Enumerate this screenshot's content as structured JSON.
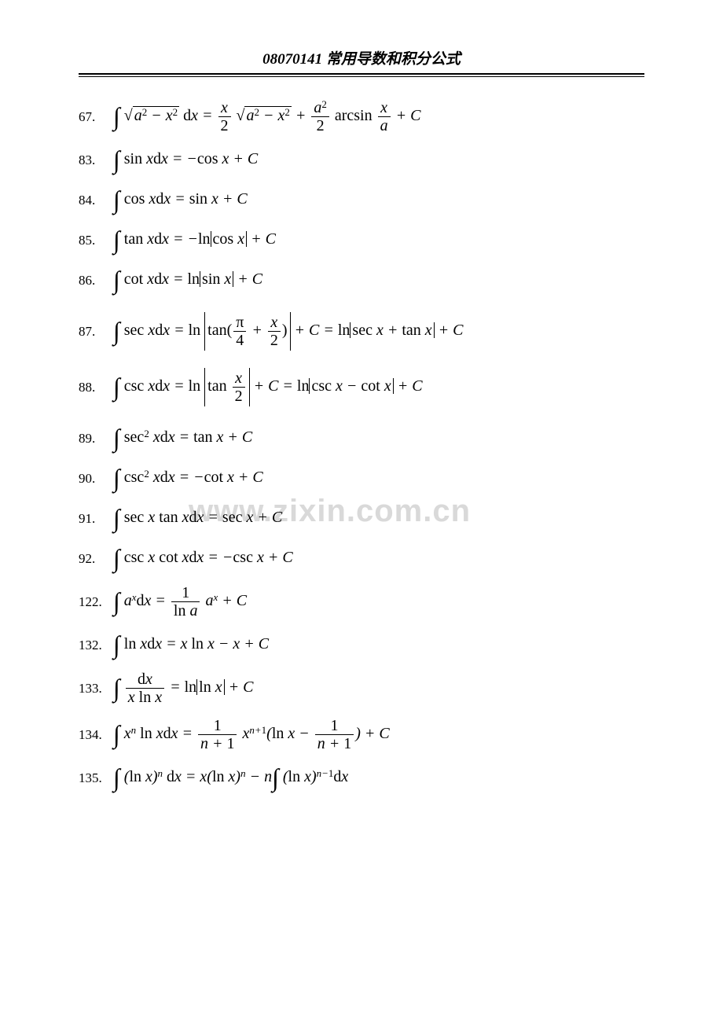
{
  "header": "08070141 常用导数和积分公式",
  "watermark": "www.zixin.com.cn",
  "formulas": [
    {
      "num": "67.",
      "type": "sqrt_a2_x2"
    },
    {
      "num": "83.",
      "type": "simple",
      "body": "∫ sin x dx = − cos x + C"
    },
    {
      "num": "84.",
      "type": "simple",
      "body": "∫ cos x dx = sin x + C"
    },
    {
      "num": "85.",
      "type": "abs",
      "lhs": "∫ tan x dx = − ln",
      "inner": "cos x",
      "rhs": " + C"
    },
    {
      "num": "86.",
      "type": "abs",
      "lhs": "∫ cot x dx = ln",
      "inner": "sin x",
      "rhs": " + C"
    },
    {
      "num": "87.",
      "type": "sec"
    },
    {
      "num": "88.",
      "type": "csc"
    },
    {
      "num": "89.",
      "type": "simple",
      "body": "∫ sec² x dx = tan x + C"
    },
    {
      "num": "90.",
      "type": "simple",
      "body": "∫ csc² x dx = − cot x + C"
    },
    {
      "num": "91.",
      "type": "simple",
      "body": "∫ sec x tan x dx = sec x + C"
    },
    {
      "num": "92.",
      "type": "simple",
      "body": "∫ csc x cot x dx = − csc x + C"
    },
    {
      "num": "122.",
      "type": "ax"
    },
    {
      "num": "132.",
      "type": "simple",
      "body": "∫ ln x dx = x ln x − x + C"
    },
    {
      "num": "133.",
      "type": "dx_xlnx"
    },
    {
      "num": "134.",
      "type": "xn_lnx"
    },
    {
      "num": "135.",
      "type": "lnx_n"
    }
  ],
  "colors": {
    "text": "#000000",
    "watermark": "#d9d9d9",
    "background": "#ffffff"
  },
  "font_sizes": {
    "header": 19,
    "formula": 20,
    "number": 17,
    "watermark": 40
  }
}
